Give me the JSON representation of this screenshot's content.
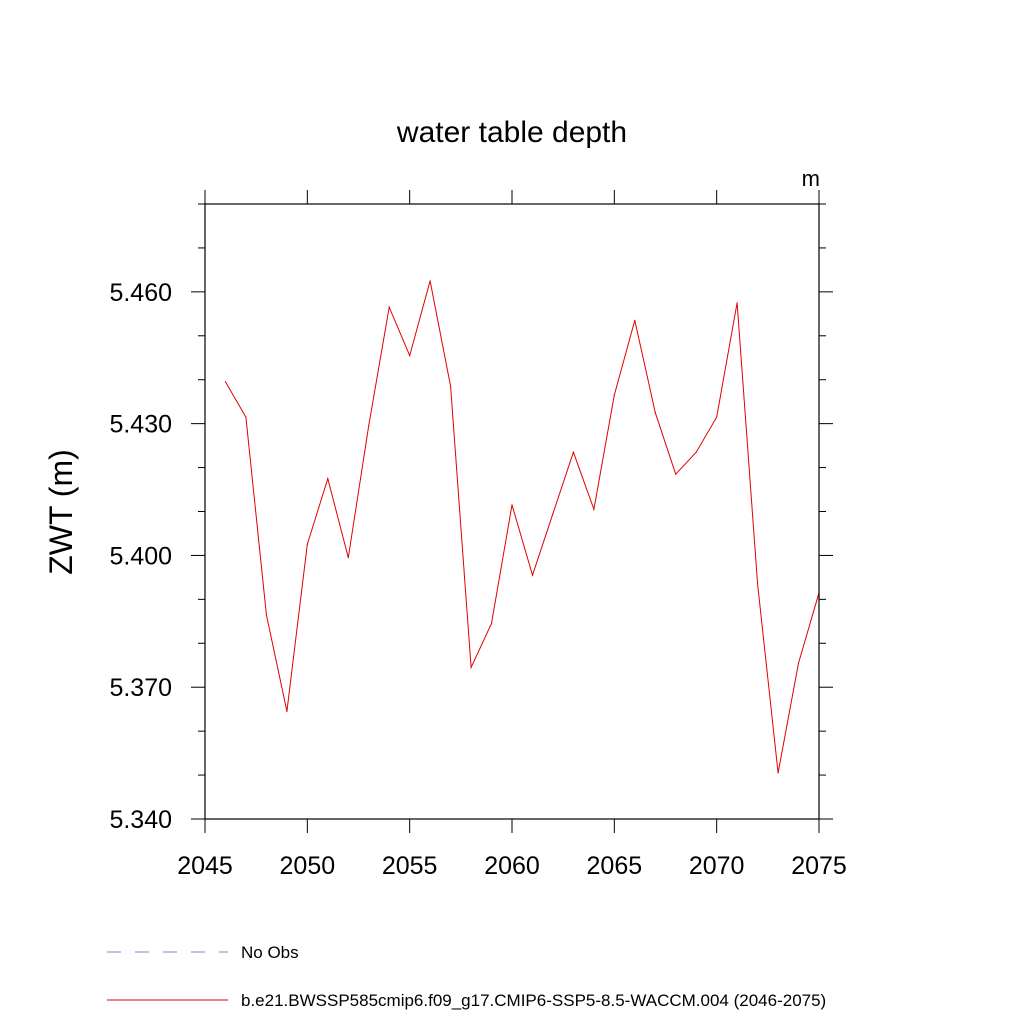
{
  "chart_data": {
    "type": "line",
    "title": "water table depth",
    "units_label": "m",
    "ylabel": "ZWT  (m)",
    "xlabel": "",
    "xlim": [
      2045,
      2075
    ],
    "ylim": [
      5.34,
      5.48
    ],
    "x_ticks": [
      "2045",
      "2050",
      "2055",
      "2060",
      "2065",
      "2070",
      "2075"
    ],
    "y_ticks": [
      "5.340",
      "5.370",
      "5.400",
      "5.430",
      "5.460"
    ],
    "grid": false,
    "legend_position": "bottom",
    "legend": [
      {
        "label": "No Obs",
        "color": "#8080c0",
        "style": "dashed"
      },
      {
        "label": "b.e21.BWSSP585cmip6.f09_g17.CMIP6-SSP5-8.5-WACCM.004 (2046-2075)",
        "color": "#e00000",
        "style": "solid"
      }
    ],
    "series": [
      {
        "name": "b.e21.BWSSP585cmip6.f09_g17.CMIP6-SSP5-8.5-WACCM.004 (2046-2075)",
        "color": "#e00000",
        "x": [
          2046,
          2047,
          2048,
          2049,
          2050,
          2051,
          2052,
          2053,
          2054,
          2055,
          2056,
          2057,
          2058,
          2059,
          2060,
          2061,
          2062,
          2063,
          2064,
          2065,
          2066,
          2067,
          2068,
          2069,
          2070,
          2071,
          2072,
          2073,
          2074,
          2075
        ],
        "values": [
          5.4395,
          5.4315,
          5.3865,
          5.3645,
          5.4025,
          5.4175,
          5.3995,
          5.4295,
          5.4565,
          5.4455,
          5.4625,
          5.4385,
          5.3745,
          5.3845,
          5.4115,
          5.3955,
          5.4095,
          5.4235,
          5.4105,
          5.4365,
          5.4535,
          5.4325,
          5.4185,
          5.4235,
          5.4315,
          5.4575,
          5.3935,
          5.3505,
          5.3755,
          5.3915
        ]
      }
    ]
  }
}
